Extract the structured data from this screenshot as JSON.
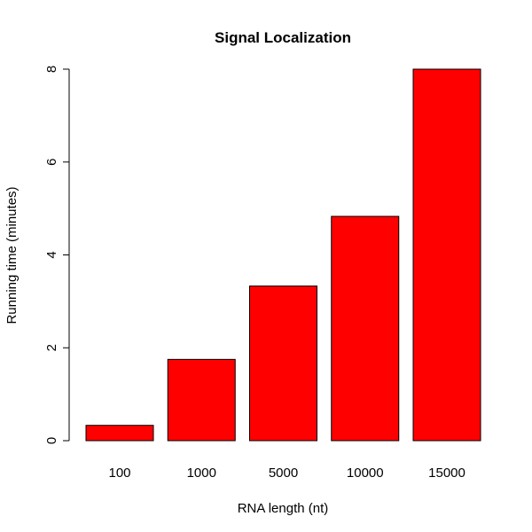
{
  "chart_data": {
    "type": "bar",
    "title": "Signal Localization",
    "xlabel": "RNA length (nt)",
    "ylabel": "Running time (minutes)",
    "categories": [
      "100",
      "1000",
      "5000",
      "10000",
      "15000"
    ],
    "values": [
      0.33,
      1.75,
      3.33,
      4.83,
      8.0
    ],
    "ylim": [
      0,
      8
    ],
    "yticks": [
      "0",
      "2",
      "4",
      "6",
      "8"
    ],
    "grid": false,
    "bar_color": "#FF0000",
    "bar_border_color": "#000000"
  }
}
